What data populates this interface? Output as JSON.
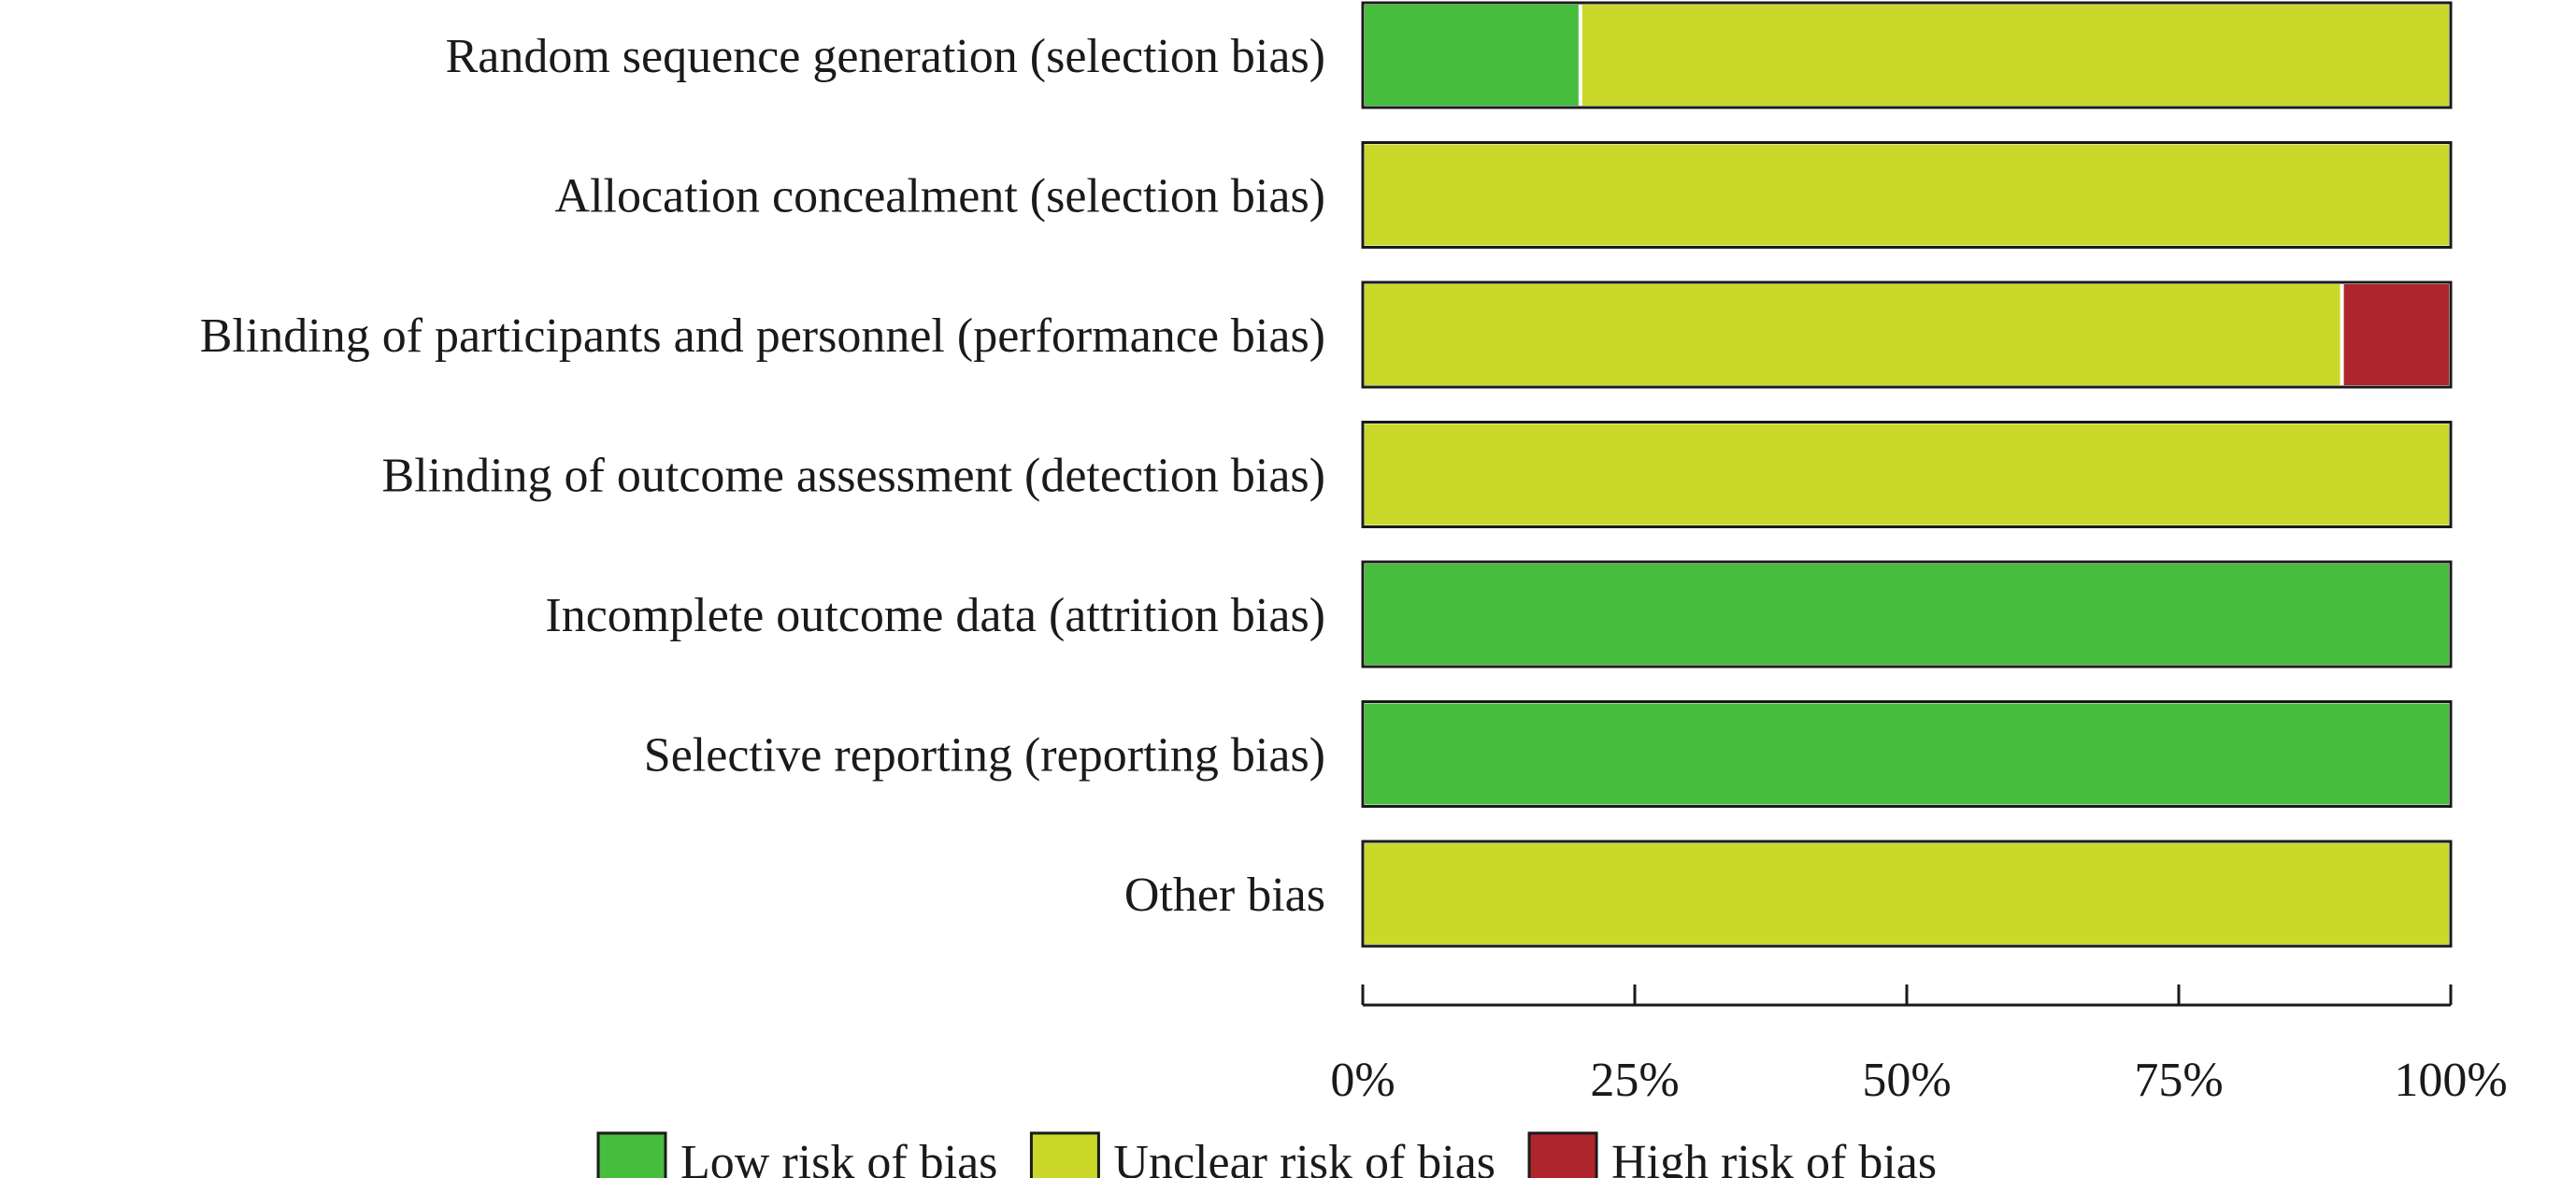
{
  "chart_data": {
    "type": "bar",
    "stacked": true,
    "orientation": "horizontal",
    "categories": [
      "Random sequence generation (selection bias)",
      "Allocation concealment (selection bias)",
      "Blinding of participants and personnel (performance bias)",
      "Blinding of outcome assessment (detection bias)",
      "Incomplete outcome data (attrition bias)",
      "Selective reporting (reporting bias)",
      "Other bias"
    ],
    "series": [
      {
        "name": "Low risk of bias",
        "color": "#46bd3c",
        "values": [
          20,
          0,
          0,
          0,
          100,
          100,
          0
        ]
      },
      {
        "name": "Unclear risk of bias",
        "color": "#cad829",
        "values": [
          80,
          100,
          90,
          100,
          0,
          0,
          100
        ]
      },
      {
        "name": "High risk of bias",
        "color": "#b0252c",
        "values": [
          0,
          0,
          10,
          0,
          0,
          0,
          0
        ]
      }
    ],
    "xlim": [
      0,
      100
    ],
    "xticks": [
      0,
      25,
      50,
      75,
      100
    ],
    "xtick_labels": [
      "0%",
      "25%",
      "50%",
      "75%",
      "100%"
    ],
    "legend_position": "bottom",
    "grid": false
  }
}
